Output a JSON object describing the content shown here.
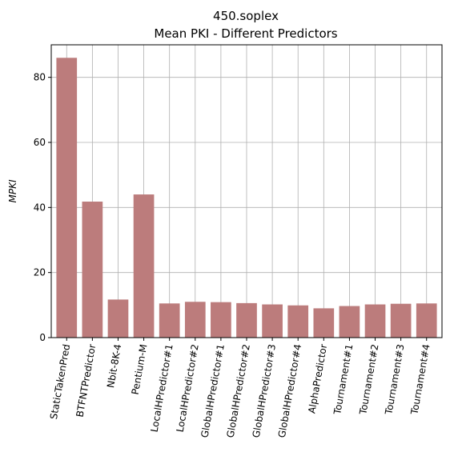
{
  "chart_data": {
    "type": "bar",
    "title": "450.soplex",
    "subtitle": "Mean PKI - Different Predictors",
    "xlabel": "",
    "ylabel": "MPKI",
    "ylim": [
      0,
      90
    ],
    "yticks": [
      0,
      20,
      40,
      60,
      80
    ],
    "grid": true,
    "bar_color": "#bc7c7c",
    "categories": [
      "StaticTakenPred",
      "BTFNTPredictor",
      "Nbit-8K-4",
      "Pentium-M",
      "LocalHPredictor#1",
      "LocalHPredictor#2",
      "GlobalHPredictor#1",
      "GlobalHPredictor#2",
      "GlobalHPredictor#3",
      "GlobalHPredictor#4",
      "AlphaPredictor",
      "Tournament#1",
      "Tournament#2",
      "Tournament#3",
      "Tournament#4"
    ],
    "values": [
      86.0,
      41.8,
      11.7,
      44.0,
      10.5,
      11.0,
      10.9,
      10.6,
      10.2,
      9.9,
      9.0,
      9.7,
      10.2,
      10.4,
      10.5
    ]
  }
}
